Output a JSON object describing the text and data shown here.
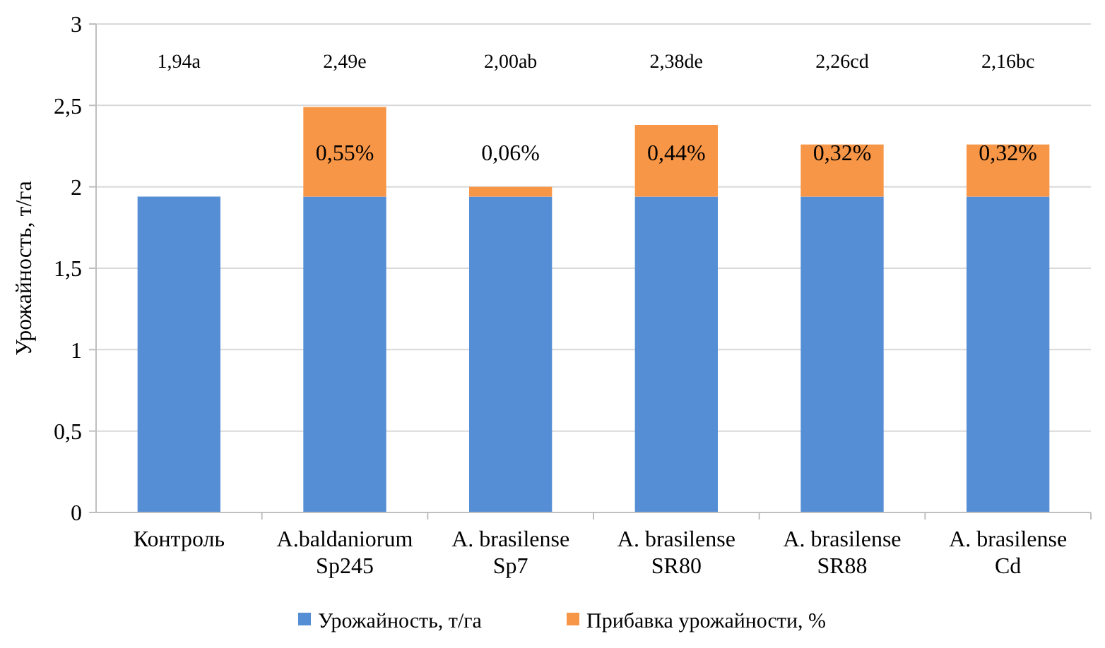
{
  "chart_data": {
    "type": "bar",
    "stacked": true,
    "ylabel": "Урожайность, т/га",
    "categories": [
      "Контроль",
      "A.baldaniorum Sp245",
      "A. brasilense Sp7",
      "A. brasilense SR80",
      "A. brasilense SR88",
      "A. brasilense Cd"
    ],
    "series": [
      {
        "name": "Урожайность, т/га",
        "color": "#558ed5",
        "values": [
          1.94,
          1.94,
          1.94,
          1.94,
          1.94,
          1.94
        ]
      },
      {
        "name": "Прибавка урожайности, %",
        "color": "#f79646",
        "values": [
          0,
          0.55,
          0.06,
          0.44,
          0.32,
          0.32
        ],
        "value_labels": [
          null,
          "0,55%",
          "0,06%",
          "0,44%",
          "0,32%",
          "0,32%"
        ]
      }
    ],
    "ylim": [
      0,
      3
    ],
    "yticks": [
      0,
      {
        "value": 0.5,
        "label": "0,5"
      },
      1,
      {
        "value": 1.5,
        "label": "1,5"
      },
      2,
      {
        "value": 2.5,
        "label": "2,5"
      },
      3
    ],
    "grid": "y",
    "legend": "bottom",
    "annotations": [
      "1,94a",
      "2,49e",
      "2,00ab",
      "2,38de",
      "2,26cd",
      "2,16bc"
    ]
  }
}
